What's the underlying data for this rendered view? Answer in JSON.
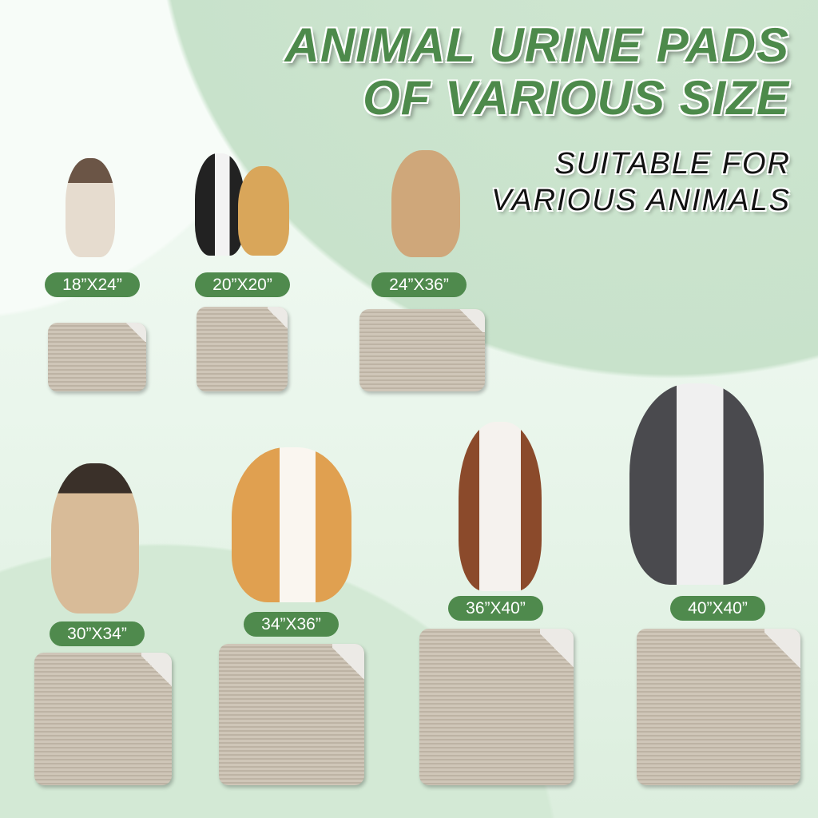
{
  "header": {
    "title_line1": "ANIMAL URINE PADS",
    "title_line2": "OF VARIOUS SIZE",
    "subtitle_line1": "SUITABLE FOR",
    "subtitle_line2": "VARIOUS ANIMALS"
  },
  "colors": {
    "accent": "#4f8a4d",
    "pad": "#c9bfb1"
  },
  "sizes": [
    {
      "label": "18”X24”",
      "animal": "siamese-cat"
    },
    {
      "label": "20”X20”",
      "animal": "cat-and-puppy"
    },
    {
      "label": "24”X36”",
      "animal": "mixed-breed-dog"
    },
    {
      "label": "30”X34”",
      "animal": "pug"
    },
    {
      "label": "34”X36”",
      "animal": "corgi"
    },
    {
      "label": "36”X40”",
      "animal": "australian-shepherd"
    },
    {
      "label": "40”X40”",
      "animal": "husky"
    }
  ]
}
